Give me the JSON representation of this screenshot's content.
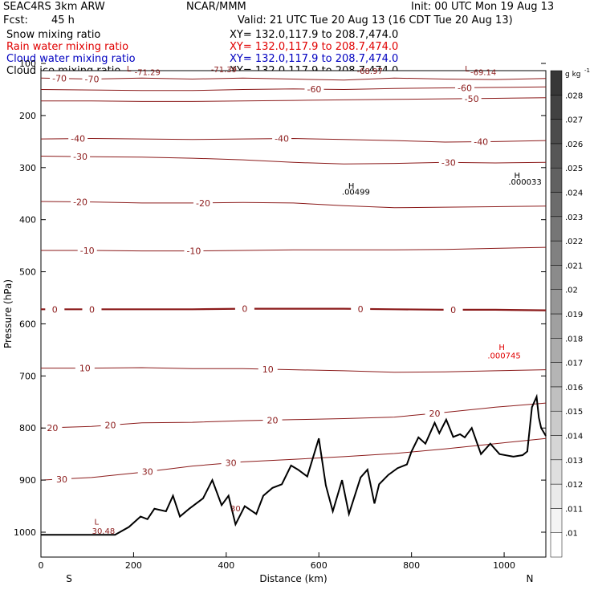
{
  "header": {
    "model": "SEAC4RS 3km ARW",
    "org": "NCAR/MMM",
    "init": "Init: 00 UTC Mon 19 Aug 13",
    "fcst_label": "Fcst:",
    "fcst_value": "45 h",
    "valid": "Valid: 21 UTC Tue 20 Aug 13 (16 CDT Tue 20 Aug 13)",
    "fields": [
      {
        "name": "Snow mixing ratio",
        "xy": "XY= 132.0,117.9 to 208.7,474.0",
        "color": "#000000"
      },
      {
        "name": "Rain water mixing ratio",
        "xy": "XY= 132.0,117.9 to 208.7,474.0",
        "color": "#e00000"
      },
      {
        "name": "Cloud water mixing ratio",
        "xy": "XY= 132.0,117.9 to 208.7,474.0",
        "color": "#0000c0"
      },
      {
        "name": "Cloud ice mixing ratio",
        "xy": "XY= 132.0,117.9 to 208.7,474.0",
        "color": "#000000"
      }
    ]
  },
  "chart_data": {
    "type": "contour",
    "xlabel": "Distance (km)",
    "ylabel": "Pressure (hPa)",
    "xlim": [
      0,
      1090
    ],
    "ylim": [
      1050,
      100
    ],
    "x_ticks": [
      0,
      200,
      400,
      600,
      800,
      1000
    ],
    "y_ticks": [
      100,
      200,
      300,
      400,
      500,
      600,
      700,
      800,
      900,
      1000
    ],
    "direction_left": "S",
    "direction_right": "N",
    "line_color": "#8b1a1a",
    "contour_interval": 10,
    "contours": [
      {
        "level": -70,
        "p": [
          128,
          130,
          128,
          130,
          128,
          130,
          132,
          128,
          130,
          131,
          129
        ],
        "labels": [
          {
            "x": 40,
            "text": "-70"
          },
          {
            "x": 110,
            "text": "-70"
          }
        ]
      },
      {
        "level": -60,
        "p": [
          150,
          151,
          152,
          152,
          150,
          149,
          150,
          148,
          147,
          146,
          145
        ],
        "labels": [
          {
            "x": 590,
            "text": "-60"
          },
          {
            "x": 915,
            "text": "-60"
          }
        ]
      },
      {
        "level": -50,
        "p": [
          172,
          172,
          173,
          173,
          172,
          171,
          170,
          169,
          168,
          167,
          166
        ],
        "labels": [
          {
            "x": 930,
            "text": "-50"
          }
        ]
      },
      {
        "level": -40,
        "p": [
          245,
          244,
          245,
          246,
          245,
          244,
          246,
          248,
          251,
          250,
          248
        ],
        "labels": [
          {
            "x": 80,
            "text": "-40"
          },
          {
            "x": 520,
            "text": "-40"
          },
          {
            "x": 950,
            "text": "-40"
          }
        ]
      },
      {
        "level": -30,
        "p": [
          278,
          279,
          280,
          282,
          285,
          290,
          293,
          292,
          290,
          291,
          290
        ],
        "labels": [
          {
            "x": 85,
            "text": "-30"
          },
          {
            "x": 880,
            "text": "-30"
          }
        ]
      },
      {
        "level": -20,
        "p": [
          365,
          366,
          368,
          368,
          367,
          368,
          373,
          377,
          376,
          375,
          374
        ],
        "labels": [
          {
            "x": 85,
            "text": "-20"
          },
          {
            "x": 350,
            "text": "-20"
          }
        ]
      },
      {
        "level": -10,
        "p": [
          459,
          459,
          460,
          460,
          459,
          458,
          458,
          458,
          457,
          455,
          453
        ],
        "labels": [
          {
            "x": 100,
            "text": "-10"
          },
          {
            "x": 330,
            "text": "-10"
          }
        ]
      },
      {
        "level": 0,
        "p": [
          572,
          572,
          572,
          572,
          571,
          571,
          571,
          572,
          573,
          573,
          574
        ],
        "labels": [
          {
            "x": 30,
            "text": "0"
          },
          {
            "x": 110,
            "text": "0"
          },
          {
            "x": 440,
            "text": "0"
          },
          {
            "x": 690,
            "text": "0"
          },
          {
            "x": 890,
            "text": "0"
          }
        ]
      },
      {
        "level": 10,
        "p": [
          685,
          685,
          684,
          686,
          686,
          688,
          690,
          693,
          692,
          690,
          688
        ],
        "labels": [
          {
            "x": 95,
            "text": "10"
          },
          {
            "x": 490,
            "text": "10"
          }
        ]
      },
      {
        "level": 20,
        "p": [
          800,
          797,
          790,
          789,
          786,
          784,
          782,
          779,
          770,
          760,
          752
        ],
        "labels": [
          {
            "x": 25,
            "text": "20"
          },
          {
            "x": 150,
            "text": "20"
          },
          {
            "x": 500,
            "text": "20"
          },
          {
            "x": 850,
            "text": "20"
          }
        ]
      },
      {
        "level": 30,
        "p": [
          900,
          895,
          885,
          873,
          865,
          860,
          855,
          849,
          840,
          830,
          820
        ],
        "labels": [
          {
            "x": 45,
            "text": "30"
          },
          {
            "x": 230,
            "text": "30"
          },
          {
            "x": 410,
            "text": "30"
          }
        ]
      }
    ],
    "annotations": [
      {
        "x": 190,
        "p": 115,
        "text": "L",
        "color": "#8b1a1a"
      },
      {
        "x": 230,
        "p": 122,
        "text": "-71.29",
        "color": "#8b1a1a"
      },
      {
        "x": 395,
        "p": 117,
        "text": "-71.39",
        "color": "#8b1a1a"
      },
      {
        "x": 710,
        "p": 120,
        "text": "-68.97",
        "color": "#8b1a1a"
      },
      {
        "x": 920,
        "p": 115,
        "text": "L",
        "color": "#8b1a1a"
      },
      {
        "x": 955,
        "p": 122,
        "text": "-69.14",
        "color": "#8b1a1a"
      },
      {
        "x": 670,
        "p": 340,
        "text": "H",
        "color": "#000000"
      },
      {
        "x": 680,
        "p": 352,
        "text": ".00499",
        "color": "#000000"
      },
      {
        "x": 1028,
        "p": 320,
        "text": "H",
        "color": "#000000"
      },
      {
        "x": 1045,
        "p": 333,
        "text": ".000033",
        "color": "#000000"
      },
      {
        "x": 995,
        "p": 650,
        "text": "H",
        "color": "#e00000"
      },
      {
        "x": 1000,
        "p": 666,
        "text": ".000745",
        "color": "#e00000"
      },
      {
        "x": 120,
        "p": 985,
        "text": "L",
        "color": "#8b1a1a"
      },
      {
        "x": 135,
        "p": 1003,
        "text": "30.48",
        "color": "#8b1a1a"
      },
      {
        "x": 420,
        "p": 960,
        "text": "30",
        "color": "#8b1a1a"
      }
    ],
    "terrain": {
      "x": [
        0,
        160,
        190,
        215,
        230,
        245,
        270,
        285,
        300,
        320,
        350,
        370,
        390,
        405,
        420,
        440,
        465,
        480,
        500,
        520,
        540,
        555,
        575,
        600,
        615,
        630,
        650,
        665,
        690,
        705,
        720,
        730,
        750,
        770,
        790,
        800,
        815,
        830,
        850,
        860,
        875,
        890,
        905,
        915,
        930,
        950,
        970,
        990,
        1020,
        1040,
        1050,
        1060,
        1070,
        1075,
        1080,
        1090
      ],
      "p": [
        1005,
        1005,
        990,
        970,
        975,
        955,
        960,
        930,
        970,
        955,
        935,
        900,
        948,
        930,
        985,
        950,
        965,
        930,
        915,
        908,
        872,
        880,
        893,
        820,
        910,
        960,
        900,
        965,
        895,
        880,
        945,
        908,
        890,
        877,
        870,
        845,
        818,
        830,
        790,
        810,
        784,
        817,
        812,
        818,
        800,
        850,
        830,
        850,
        855,
        852,
        845,
        760,
        740,
        780,
        800,
        815
      ]
    },
    "colorbar": {
      "unit": "g kg",
      "unit_exp": "-1",
      "levels": [
        ".01",
        ".011",
        ".012",
        ".013",
        ".014",
        ".015",
        ".016",
        ".017",
        ".018",
        ".019",
        ".02",
        ".021",
        ".022",
        ".023",
        ".024",
        ".025",
        ".026",
        ".027",
        ".028"
      ]
    }
  }
}
